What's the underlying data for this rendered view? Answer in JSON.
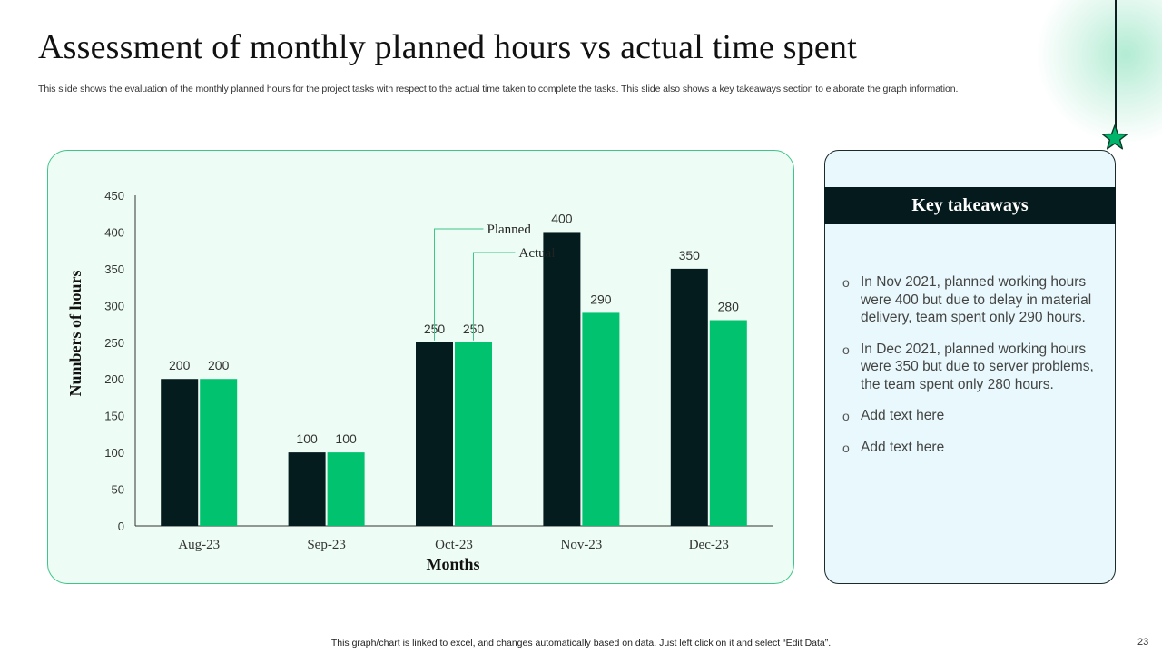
{
  "slide": {
    "title": "Assessment of monthly planned hours vs actual time spent",
    "subtitle": "This slide shows the evaluation of the monthly planned hours for the project tasks with respect to the actual time taken to complete the tasks. This slide also shows a key takeaways section to elaborate the graph information.",
    "footer_note": "This graph/chart is linked to excel,  and changes automatically based on data. Just left click on it and select “Edit Data”.",
    "page_number": "23",
    "accent_color": "#00c26f",
    "dark_color": "#041c1e"
  },
  "chart_data": {
    "type": "bar",
    "title": "",
    "xlabel": "Months",
    "ylabel": "Numbers of hours",
    "categories": [
      "Aug-23",
      "Sep-23",
      "Oct-23",
      "Nov-23",
      "Dec-23"
    ],
    "series": [
      {
        "name": "Planned",
        "color": "#041c1e",
        "values": [
          200,
          100,
          250,
          400,
          350
        ]
      },
      {
        "name": "Actual",
        "color": "#00c26f",
        "values": [
          200,
          100,
          250,
          290,
          280
        ]
      }
    ],
    "ylim": [
      0,
      450
    ],
    "yticks": [
      0,
      50,
      100,
      150,
      200,
      250,
      300,
      350,
      400,
      450
    ],
    "grid": false,
    "legend": "callout labels above Oct-23 bars"
  },
  "takeaways": {
    "heading": "Key takeaways",
    "bullet_glyph": "o",
    "items": [
      "In Nov 2021, planned working hours were 400 but due to delay in material delivery, team spent only 290 hours.",
      "In Dec 2021, planned working hours were 350 but due to server problems, the team spent only 280 hours.",
      "Add text here",
      "Add text here"
    ]
  }
}
